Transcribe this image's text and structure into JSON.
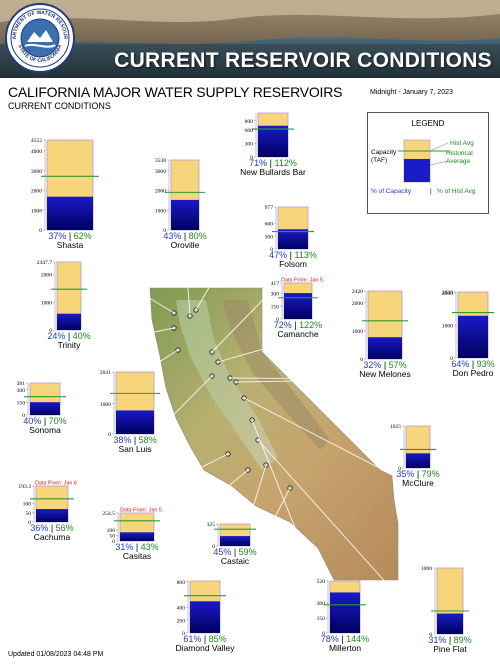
{
  "header": {
    "banner_title": "CURRENT RESERVOIR CONDITIONS",
    "seal_top_text": "DEPARTMENT OF WATER RESOURCES",
    "seal_bottom_text": "STATE OF CALIFORNIA",
    "heading": "CALIFORNIA MAJOR WATER SUPPLY RESERVOIRS",
    "subheading": "CURRENT CONDITIONS",
    "date": "Midnight - January 7, 2023"
  },
  "legend": {
    "title": "LEGEND",
    "hist_avg": "Hist Avg",
    "capacity": "Capacity (TAF)",
    "historical_average": "Historical Average",
    "pct_capacity": "% of Capacity",
    "separator": "|",
    "pct_hist_avg": "% of Hist Avg"
  },
  "footer": {
    "updated": "Updated 01/08/2023 04:48 PM"
  },
  "colors": {
    "capacity_fill": "#f7d57a",
    "storage_fill": "#1a1ac8",
    "storage_dark": "#000060",
    "hist_avg_line": "#2e9a2e",
    "pct_capacity_text": "#1f3fc0",
    "pct_hist_text": "#1d8a1d",
    "note_text": "#e01010",
    "chart_border": "#b49ad6"
  },
  "chart_data": [
    {
      "type": "bar",
      "name": "Shasta",
      "capacity": 4552,
      "storage_pct": 37,
      "hist_pct": 62,
      "note": "",
      "ticks": [
        {
          "v": 4552,
          "label": "4552"
        },
        {
          "v": 4000,
          "label": "4000"
        },
        {
          "v": 3000,
          "label": "3000"
        },
        {
          "v": 2000,
          "label": "2000"
        },
        {
          "v": 1008,
          "label": "1008"
        },
        {
          "v": 0,
          "label": "0"
        }
      ],
      "pct_label": "37%",
      "sep": "|",
      "hist_label": "62%"
    },
    {
      "type": "bar",
      "name": "Oroville",
      "capacity": 3538,
      "storage_pct": 43,
      "hist_pct": 80,
      "note": "",
      "ticks": [
        {
          "v": 3538,
          "label": "3538"
        },
        {
          "v": 3000,
          "label": "3000"
        },
        {
          "v": 2000,
          "label": "2000"
        },
        {
          "v": 1000,
          "label": "1000"
        },
        {
          "v": 0,
          "label": "0"
        }
      ],
      "pct_label": "43%",
      "sep": "|",
      "hist_label": "80%"
    },
    {
      "type": "bar",
      "name": "New Bullards Bar",
      "capacity": 966,
      "storage_pct": 71,
      "hist_pct": 112,
      "note": "",
      "ticks": [
        {
          "v": 800,
          "label": "800"
        },
        {
          "v": 600,
          "label": "600"
        },
        {
          "v": 300,
          "label": "300"
        },
        {
          "v": 0,
          "label": "0"
        }
      ],
      "pct_label": "71%",
      "sep": "|",
      "hist_label": "112%"
    },
    {
      "type": "bar",
      "name": "Folsom",
      "capacity": 977,
      "storage_pct": 47,
      "hist_pct": 113,
      "note": "",
      "ticks": [
        {
          "v": 977,
          "label": "977"
        },
        {
          "v": 600,
          "label": "600"
        },
        {
          "v": 300,
          "label": "300"
        },
        {
          "v": 0,
          "label": "0"
        }
      ],
      "pct_label": "47%",
      "sep": "|",
      "hist_label": "113%"
    },
    {
      "type": "bar",
      "name": "Trinity",
      "capacity": 2447.7,
      "storage_pct": 24,
      "hist_pct": 40,
      "note": "",
      "ticks": [
        {
          "v": 2447.7,
          "label": "2447.7"
        },
        {
          "v": 2000,
          "label": "2000"
        },
        {
          "v": 1000,
          "label": "1000"
        },
        {
          "v": 0,
          "label": "0"
        }
      ],
      "pct_label": "24%",
      "sep": "|",
      "hist_label": "40%"
    },
    {
      "type": "bar",
      "name": "Camanche",
      "capacity": 417,
      "storage_pct": 72,
      "hist_pct": 122,
      "note": "Data From: Jan 5",
      "ticks": [
        {
          "v": 417,
          "label": "417"
        },
        {
          "v": 300,
          "label": "300"
        },
        {
          "v": 150,
          "label": "150"
        },
        {
          "v": 0,
          "label": "0"
        }
      ],
      "pct_label": "72%",
      "sep": "|",
      "hist_label": "122%"
    },
    {
      "type": "bar",
      "name": "New Melones",
      "capacity": 2420,
      "storage_pct": 32,
      "hist_pct": 57,
      "note": "",
      "ticks": [
        {
          "v": 2420,
          "label": "2420"
        },
        {
          "v": 2000,
          "label": "2000"
        },
        {
          "v": 1000,
          "label": "1000"
        },
        {
          "v": 0,
          "label": "0"
        }
      ],
      "pct_label": "32%",
      "sep": "|",
      "hist_label": "57%"
    },
    {
      "type": "bar",
      "name": "Don Pedro",
      "capacity": 2030,
      "storage_pct": 64,
      "hist_pct": 93,
      "note": "",
      "ticks": [
        {
          "v": 2030,
          "label": "2030"
        },
        {
          "v": 2000,
          "label": "2000"
        },
        {
          "v": 1000,
          "label": "1000"
        },
        {
          "v": 0,
          "label": "0"
        }
      ],
      "pct_label": "64%",
      "sep": "|",
      "hist_label": "93%"
    },
    {
      "type": "bar",
      "name": "Sonoma",
      "capacity": 381,
      "storage_pct": 40,
      "hist_pct": 70,
      "note": "",
      "ticks": [
        {
          "v": 381,
          "label": "381"
        },
        {
          "v": 300,
          "label": "300"
        },
        {
          "v": 150,
          "label": "150"
        },
        {
          "v": 0,
          "label": "0"
        }
      ],
      "pct_label": "40%",
      "sep": "|",
      "hist_label": "70%"
    },
    {
      "type": "bar",
      "name": "San Luis",
      "capacity": 2041,
      "storage_pct": 38,
      "hist_pct": 58,
      "note": "",
      "ticks": [
        {
          "v": 2041,
          "label": "2041"
        },
        {
          "v": 1000,
          "label": "1000"
        },
        {
          "v": 0,
          "label": "0"
        }
      ],
      "pct_label": "38%",
      "sep": "|",
      "hist_label": "58%"
    },
    {
      "type": "bar",
      "name": "McClure",
      "capacity": 1025,
      "storage_pct": 35,
      "hist_pct": 79,
      "note": "",
      "ticks": [
        {
          "v": 1025,
          "label": "1025"
        },
        {
          "v": 0,
          "label": "0"
        }
      ],
      "pct_label": "35%",
      "sep": "|",
      "hist_label": "79%"
    },
    {
      "type": "bar",
      "name": "Cachuma",
      "capacity": 193.3,
      "storage_pct": 36,
      "hist_pct": 56,
      "note": "Data From: Jan 6",
      "ticks": [
        {
          "v": 193.3,
          "label": "193.3"
        },
        {
          "v": 100,
          "label": "100"
        },
        {
          "v": 50,
          "label": "50"
        },
        {
          "v": 0,
          "label": "0"
        }
      ],
      "pct_label": "36%",
      "sep": "|",
      "hist_label": "56%"
    },
    {
      "type": "bar",
      "name": "Casitas",
      "capacity": 254.5,
      "storage_pct": 31,
      "hist_pct": 43,
      "note": "Data From: Jan 5",
      "ticks": [
        {
          "v": 254.5,
          "label": "254.5"
        },
        {
          "v": 100,
          "label": "100"
        },
        {
          "v": 50,
          "label": "50"
        },
        {
          "v": 0,
          "label": "0"
        }
      ],
      "pct_label": "31%",
      "sep": "|",
      "hist_label": "43%"
    },
    {
      "type": "bar",
      "name": "Castaic",
      "capacity": 325,
      "storage_pct": 45,
      "hist_pct": 59,
      "note": "",
      "ticks": [
        {
          "v": 325,
          "label": "325"
        },
        {
          "v": 0,
          "label": "0"
        }
      ],
      "pct_label": "45%",
      "sep": "|",
      "hist_label": "59%"
    },
    {
      "type": "bar",
      "name": "Diamond Valley",
      "capacity": 810,
      "storage_pct": 61,
      "hist_pct": 85,
      "note": "",
      "ticks": [
        {
          "v": 800,
          "label": "800"
        },
        {
          "v": 400,
          "label": "400"
        },
        {
          "v": 200,
          "label": "200"
        },
        {
          "v": 0,
          "label": "0"
        }
      ],
      "pct_label": "61%",
      "sep": "|",
      "hist_label": "85%"
    },
    {
      "type": "bar",
      "name": "Millerton",
      "capacity": 520,
      "storage_pct": 78,
      "hist_pct": 144,
      "note": "",
      "ticks": [
        {
          "v": 520,
          "label": "520"
        },
        {
          "v": 300,
          "label": "300"
        },
        {
          "v": 150,
          "label": "150"
        },
        {
          "v": 0,
          "label": "0"
        }
      ],
      "pct_label": "78%",
      "sep": "|",
      "hist_label": "144%"
    },
    {
      "type": "bar",
      "name": "Pine Flat",
      "capacity": 1000,
      "storage_pct": 31,
      "hist_pct": 89,
      "note": "",
      "ticks": [
        {
          "v": 1000,
          "label": "1000"
        },
        {
          "v": 0,
          "label": "0"
        }
      ],
      "pct_label": "31%",
      "sep": "|",
      "hist_label": "89%"
    }
  ]
}
